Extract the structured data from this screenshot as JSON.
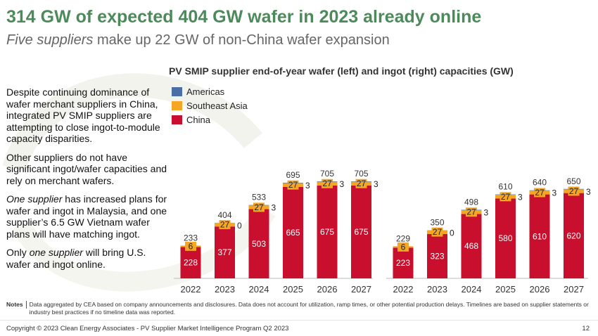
{
  "page": {
    "title": "314 GW of expected 404 GW wafer in 2023 already online",
    "subtitle_em": "Five suppliers",
    "subtitle_rest": " make up 22 GW of non-China wafer expansion",
    "paragraphs": [
      {
        "em": "",
        "rest": "Despite continuing dominance of wafer merchant suppliers in China, integrated PV SMIP suppliers are attempting to close ingot-to-module capacity disparities."
      },
      {
        "em": "",
        "rest": "Other suppliers do not have significant ingot/wafer capacities and rely on merchant wafers."
      },
      {
        "em": "One supplier",
        "rest": " has increased plans for wafer and ingot in Malaysia, and one supplier’s 6.5 GW Vietnam wafer plans will have matching ingot."
      },
      {
        "em": "Only ",
        "rest": "one supplier will bring U.S. wafer and ingot online."
      }
    ],
    "notes_label": "Notes",
    "notes_text": "Data aggregated by CEA based on company announcements and disclosures. Data does not account for utilization, ramp times, or other potential production delays. Timelines are based on supplier statements or industry best practices if no timeline data was reported.",
    "copyright": "Copyright © 2023 Clean Energy Associates - PV Supplier Market Intelligence Program Q2 2023",
    "page_number": "12",
    "colors": {
      "title": "#4d8a5b",
      "china": "#c8102e",
      "southeast_asia": "#f5a623",
      "americas": "#4a6fa5"
    }
  },
  "chart_data": [
    {
      "type": "bar",
      "stacked": true,
      "title": "PV SMIP supplier end-of-year wafer (left) and ingot (right) capacities (GW)",
      "panel": "wafer",
      "categories": [
        "2022",
        "2023",
        "2024",
        "2025",
        "2026",
        "2027"
      ],
      "series": [
        {
          "name": "China",
          "values": [
            228,
            377,
            503,
            665,
            675,
            675
          ]
        },
        {
          "name": "Southeast Asia",
          "values": [
            6,
            27,
            27,
            27,
            27,
            27
          ]
        },
        {
          "name": "Americas",
          "values": [
            null,
            0,
            3,
            3,
            3,
            3
          ]
        }
      ],
      "totals": [
        233,
        404,
        533,
        695,
        705,
        705
      ],
      "ylim": [
        0,
        705
      ],
      "legend": [
        "Americas",
        "Southeast Asia",
        "China"
      ],
      "legend_position": "top-left",
      "grid": false
    },
    {
      "type": "bar",
      "stacked": true,
      "panel": "ingot",
      "categories": [
        "2022",
        "2023",
        "2024",
        "2025",
        "2026",
        "2027"
      ],
      "series": [
        {
          "name": "China",
          "values": [
            223,
            323,
            468,
            580,
            610,
            620
          ]
        },
        {
          "name": "Southeast Asia",
          "values": [
            6,
            27,
            27,
            27,
            27,
            27
          ]
        },
        {
          "name": "Americas",
          "values": [
            null,
            0,
            3,
            3,
            3,
            3
          ]
        }
      ],
      "totals": [
        229,
        350,
        498,
        610,
        640,
        650
      ],
      "ylim": [
        0,
        705
      ],
      "grid": false
    }
  ]
}
